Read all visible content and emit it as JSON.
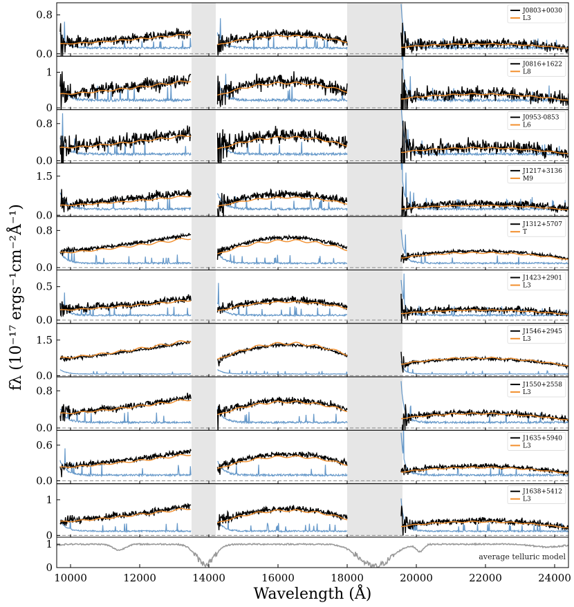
{
  "chart_data": {
    "type": "line",
    "xlabel": "Wavelength (Å)",
    "ylabel": "fλ (10⁻¹⁷ ergs⁻¹cm⁻²Å⁻¹)",
    "xlim": [
      9600,
      24400
    ],
    "x_ticks": [
      10000,
      12000,
      14000,
      16000,
      18000,
      20000,
      22000,
      24000
    ],
    "colors": {
      "observed": "#000000",
      "template": "#f28e2b",
      "noise": "#4a86c0",
      "telluric_mask": "#e6e6e6",
      "telluric_model": "#999999",
      "zero_line": "#888888"
    },
    "masked_regions": [
      [
        13500,
        14200
      ],
      [
        18000,
        19600
      ]
    ],
    "panels": [
      {
        "object": "J0803+0030",
        "template": "L3",
        "ylim": [
          -0.05,
          1.05
        ],
        "yticks": [
          0.0,
          0.8
        ],
        "ytick_labels": [
          "0.0",
          "0.8"
        ],
        "flux_scale": 0.4,
        "template_scale": 0.38,
        "noise_level": 0.1,
        "noise_amp": 0.25
      },
      {
        "object": "J0816+1622",
        "template": "L8",
        "ylim": [
          -0.05,
          1.45
        ],
        "yticks": [
          0,
          1
        ],
        "ytick_labels": [
          "0",
          "1"
        ],
        "flux_scale": 0.75,
        "template_scale": 0.72,
        "noise_level": 0.18,
        "noise_amp": 0.25
      },
      {
        "object": "J0953-0853",
        "template": "L6",
        "ylim": [
          -0.05,
          1.1
        ],
        "yticks": [
          0.0,
          0.8
        ],
        "ytick_labels": [
          "0.0",
          "0.8"
        ],
        "flux_scale": 0.55,
        "template_scale": 0.52,
        "noise_level": 0.12,
        "noise_amp": 0.28
      },
      {
        "object": "J1217+3136",
        "template": "M9",
        "ylim": [
          -0.05,
          2.0
        ],
        "yticks": [
          0.0,
          1.5
        ],
        "ytick_labels": [
          "0.0",
          "1.5"
        ],
        "flux_scale": 0.8,
        "template_scale": 0.7,
        "noise_level": 0.2,
        "noise_amp": 0.2
      },
      {
        "object": "J1312+5707",
        "template": "T",
        "ylim": [
          -0.05,
          1.1
        ],
        "yticks": [
          0.0,
          0.8
        ],
        "ytick_labels": [
          "0.0",
          "0.8"
        ],
        "flux_scale": 0.65,
        "template_scale": 0.6,
        "noise_level": 0.08,
        "noise_amp": 0.06
      },
      {
        "object": "J1423+2901",
        "template": "L3",
        "ylim": [
          -0.05,
          0.75
        ],
        "yticks": [
          0.0,
          0.5
        ],
        "ytick_labels": [
          "0.0",
          "0.5"
        ],
        "flux_scale": 0.3,
        "template_scale": 0.28,
        "noise_level": 0.06,
        "noise_amp": 0.18
      },
      {
        "object": "J1546+2945",
        "template": "L3",
        "ylim": [
          -0.05,
          2.2
        ],
        "yticks": [
          0.0,
          1.5
        ],
        "ytick_labels": [
          "0.0",
          "1.5"
        ],
        "flux_scale": 1.3,
        "template_scale": 1.4,
        "noise_level": 0.06,
        "noise_amp": 0.05
      },
      {
        "object": "J1550+2558",
        "template": "L3",
        "ylim": [
          -0.05,
          1.1
        ],
        "yticks": [
          0.0,
          0.8
        ],
        "ytick_labels": [
          "0.0",
          "0.8"
        ],
        "flux_scale": 0.6,
        "template_scale": 0.58,
        "noise_level": 0.1,
        "noise_amp": 0.12
      },
      {
        "object": "J1635+5940",
        "template": "L3",
        "ylim": [
          -0.05,
          0.85
        ],
        "yticks": [
          0.0,
          0.6
        ],
        "ytick_labels": [
          "0.0",
          "0.6"
        ],
        "flux_scale": 0.45,
        "template_scale": 0.42,
        "noise_level": 0.08,
        "noise_amp": 0.1
      },
      {
        "object": "J1638+5412",
        "template": "L3",
        "ylim": [
          -0.05,
          1.45
        ],
        "yticks": [
          0,
          1
        ],
        "ytick_labels": [
          "0",
          "1"
        ],
        "flux_scale": 0.75,
        "template_scale": 0.72,
        "noise_level": 0.1,
        "noise_amp": 0.12
      }
    ],
    "telluric": {
      "label": "average telluric model",
      "ylim": [
        0,
        1.3
      ],
      "yticks": [
        0,
        1
      ],
      "ytick_labels": [
        "0",
        "1"
      ]
    }
  }
}
